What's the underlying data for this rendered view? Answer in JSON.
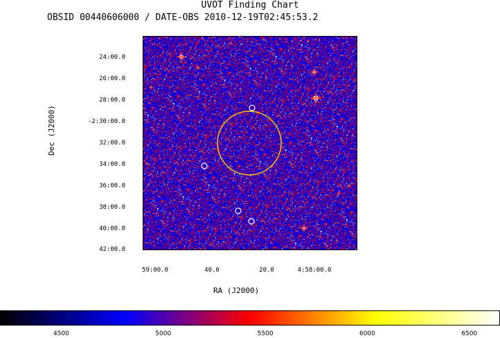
{
  "chart_data": {
    "type": "heatmap",
    "title": "UVOT Finding Chart",
    "subtitle": "OBSID 00440606000 / DATE-OBS 2010-12-19T02:45:53.2",
    "xlabel": "RA (J2000)",
    "ylabel": "Dec (J2000)",
    "x_ticks": [
      "59:00.0",
      "40.0",
      "20.0",
      "4:58:00.0"
    ],
    "y_ticks": [
      "24:00.0",
      "26:00.0",
      "28:00.0",
      "-2:30:00.0",
      "32:00.0",
      "34:00.0",
      "36:00.0",
      "38:00.0",
      "40:00.0",
      "42:00.0"
    ],
    "colorbar_ticks": [
      4500,
      5000,
      5500,
      6000,
      6500
    ],
    "colorbar_range": [
      4200,
      6650
    ],
    "colormap": [
      "#000000",
      "#0000ff",
      "#ff0000",
      "#ffff00",
      "#ffffff"
    ],
    "annotation_colors": {
      "large_circle": "#ffc800",
      "small_circles": "#ffffff"
    }
  }
}
